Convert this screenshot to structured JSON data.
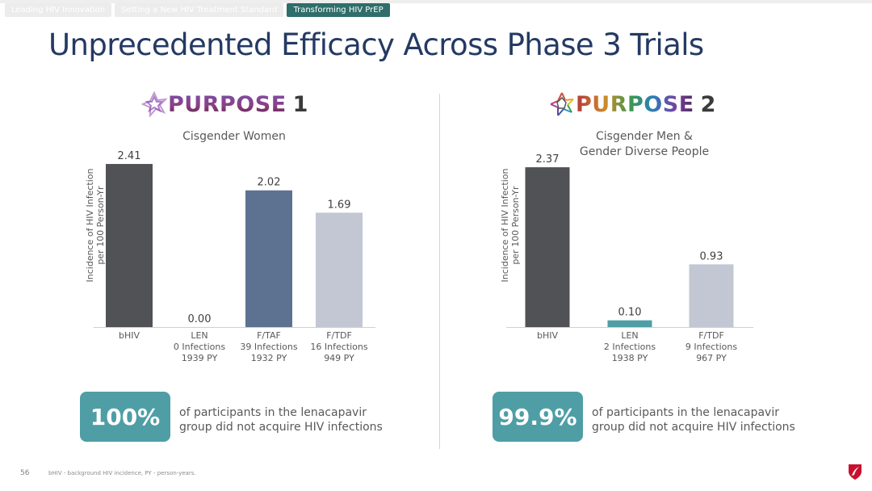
{
  "nav": {
    "tabs": [
      {
        "label": "Leading HIV Innovation",
        "active": false
      },
      {
        "label": "Setting a New HIV Treatment Standard",
        "active": false
      },
      {
        "label": "Transforming HIV PrEP",
        "active": true
      }
    ]
  },
  "slide": {
    "title": "Unprecedented Efficacy Across Phase 3 Trials",
    "page_number": "56",
    "footnote": "bHIV - background HIV incidence, PY - person-years."
  },
  "colors": {
    "title": "#243a63",
    "bhiv": "#505256",
    "ftaf": "#5d7291",
    "ftdf": "#c3c7d3",
    "len": "#4f9ea6",
    "stat_box": "#4f9ea6",
    "active_tab": "#2f6e6a"
  },
  "panels": [
    {
      "logo_word": "PURPOSE",
      "logo_number": "1",
      "subtitle_lines": [
        "Cisgender Women"
      ],
      "stat_value": "100%",
      "stat_text_lines": [
        "of participants in the lenacapavir",
        "group did not acquire HIV infections"
      ]
    },
    {
      "logo_word": "PURPOSE",
      "logo_number": "2",
      "subtitle_lines": [
        "Cisgender Men &",
        "Gender Diverse People"
      ],
      "stat_value": "99.9%",
      "stat_text_lines": [
        "of participants in the lenacapavir",
        "group did not acquire HIV infections"
      ]
    }
  ],
  "chart_data": [
    {
      "type": "bar",
      "title": "PURPOSE 1 - Cisgender Women",
      "xlabel": "",
      "ylabel": "Incidence of HIV Infection per 100 Person-Yr",
      "ylabel_lines": [
        "Incidence of HIV Infection",
        "per 100 Person-Yr"
      ],
      "categories": [
        "bHIV",
        "LEN",
        "F/TAF",
        "F/TDF"
      ],
      "category_details": [
        [
          "bHIV"
        ],
        [
          "LEN",
          "0 Infections",
          "1939 PY"
        ],
        [
          "F/TAF",
          "39 Infections",
          "1932 PY"
        ],
        [
          "F/TDF",
          "16 Infections",
          "949 PY"
        ]
      ],
      "values": [
        2.41,
        0.0,
        2.02,
        1.69
      ],
      "value_labels": [
        "2.41",
        "0.00",
        "2.02",
        "1.69"
      ],
      "bar_colors": [
        "#505256",
        "#4f9ea6",
        "#5d7291",
        "#c3c7d3"
      ],
      "ylim": [
        0,
        2.41
      ],
      "grid": false,
      "legend": "none"
    },
    {
      "type": "bar",
      "title": "PURPOSE 2 - Cisgender Men & Gender Diverse People",
      "xlabel": "",
      "ylabel": "Incidence of HIV Infection per 100 Person-Yr",
      "ylabel_lines": [
        "Incidence of HIV Infection",
        "per 100 Person-Yr"
      ],
      "categories": [
        "bHIV",
        "LEN",
        "F/TDF"
      ],
      "category_details": [
        [
          "bHIV"
        ],
        [
          "LEN",
          "2 Infections",
          "1938 PY"
        ],
        [
          "F/TDF",
          "9 Infections",
          "967 PY"
        ]
      ],
      "values": [
        2.37,
        0.1,
        0.93
      ],
      "value_labels": [
        "2.37",
        "0.10",
        "0.93"
      ],
      "bar_colors": [
        "#505256",
        "#4f9ea6",
        "#c3c7d3"
      ],
      "ylim": [
        0,
        2.37
      ],
      "grid": false,
      "legend": "none"
    }
  ]
}
